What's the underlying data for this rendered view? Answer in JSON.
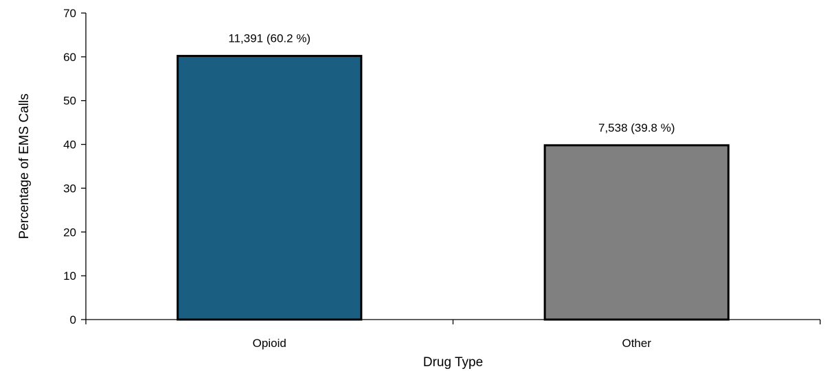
{
  "chart_data": {
    "type": "bar",
    "title": "",
    "xlabel": "Drug Type",
    "ylabel": "Percentage of EMS Calls",
    "categories": [
      "Opioid",
      "Other"
    ],
    "values": [
      60.2,
      39.8
    ],
    "data_labels": [
      "11,391  (60.2 %)",
      "7,538  (39.8 %)"
    ],
    "ylim": [
      0,
      70
    ],
    "yticks": [
      0,
      10,
      20,
      30,
      40,
      50,
      60,
      70
    ],
    "ytick_labels": [
      "0",
      "10",
      "20",
      "30",
      "40",
      "50",
      "60",
      "70"
    ],
    "bar_colors": [
      "#1a5f82",
      "#808080"
    ],
    "grid": false,
    "legend": "none"
  }
}
